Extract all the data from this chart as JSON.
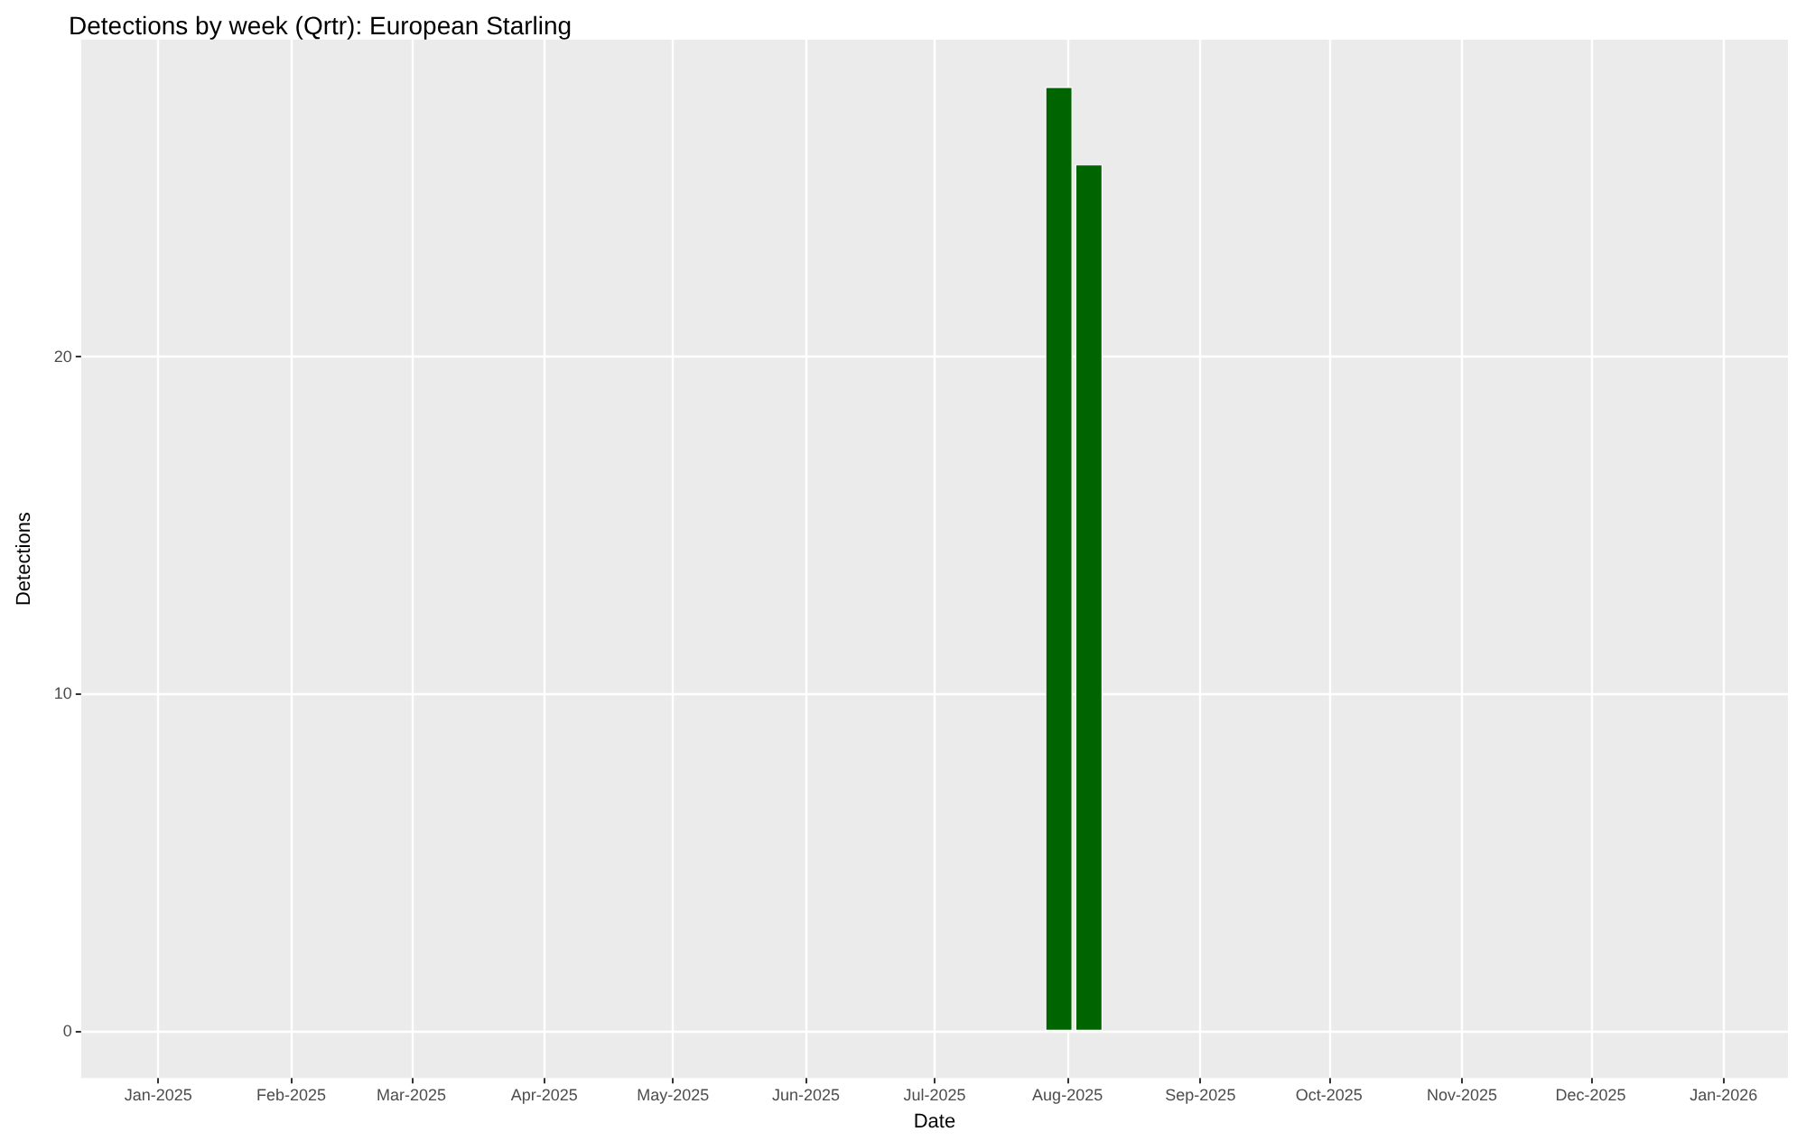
{
  "chart_data": {
    "type": "bar",
    "title": "Detections by week (Qrtr): European Starling",
    "xlabel": "Date",
    "ylabel": "Detections",
    "x": [
      "2025-07-30",
      "2025-08-06"
    ],
    "values": [
      28,
      25.7
    ],
    "color": "#006400",
    "xlim": [
      "2024-12-14",
      "2026-01-16"
    ],
    "xticks": [
      {
        "value": "2025-01-01",
        "label": "Jan-2025"
      },
      {
        "value": "2025-02-01",
        "label": "Feb-2025"
      },
      {
        "value": "2025-03-01",
        "label": "Mar-2025"
      },
      {
        "value": "2025-04-01",
        "label": "Apr-2025"
      },
      {
        "value": "2025-05-01",
        "label": "May-2025"
      },
      {
        "value": "2025-06-01",
        "label": "Jun-2025"
      },
      {
        "value": "2025-07-01",
        "label": "Jul-2025"
      },
      {
        "value": "2025-08-01",
        "label": "Aug-2025"
      },
      {
        "value": "2025-09-01",
        "label": "Sep-2025"
      },
      {
        "value": "2025-10-01",
        "label": "Oct-2025"
      },
      {
        "value": "2025-11-01",
        "label": "Nov-2025"
      },
      {
        "value": "2025-12-01",
        "label": "Dec-2025"
      },
      {
        "value": "2026-01-01",
        "label": "Jan-2026"
      }
    ],
    "ylim": [
      -1.4,
      29.4
    ],
    "yticks": [
      0,
      10,
      20
    ],
    "grid": true
  }
}
